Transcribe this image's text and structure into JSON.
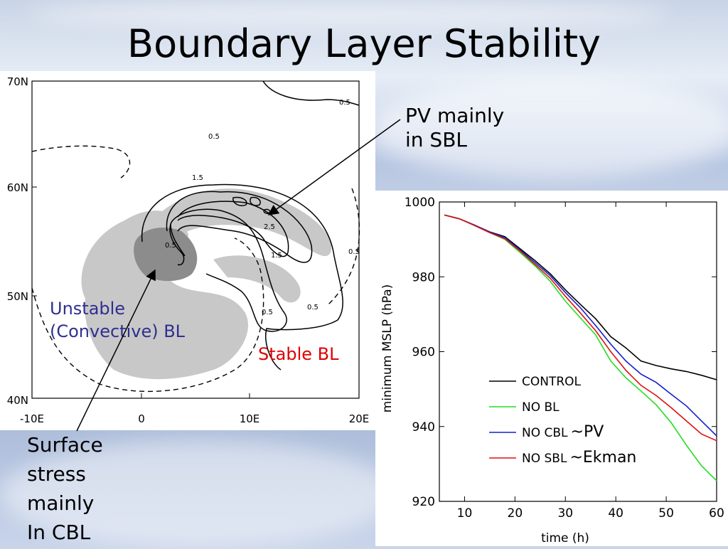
{
  "slide": {
    "title": "Boundary Layer Stability"
  },
  "callouts": {
    "pv_sbl": [
      "PV mainly",
      "in SBL"
    ],
    "surface_stress": [
      "Surface",
      "stress",
      "mainly",
      "In CBL"
    ]
  },
  "map": {
    "lat_labels": [
      "70N",
      "60N",
      "50N",
      "40N"
    ],
    "lon_labels": [
      "-10E",
      "0",
      "10E",
      "20E"
    ],
    "contour_labels": [
      "0.5",
      "0.5",
      "1.5",
      "2.5",
      "1.5",
      "0.5",
      "0.5",
      "0.5",
      "0.5"
    ],
    "unstable_label": [
      "Unstable",
      "(Convective) BL"
    ],
    "stable_label": "Stable BL",
    "colors": {
      "unstable": "#2f2f8f",
      "stable": "#e00000",
      "light_shade": "#c8c8c8",
      "dark_shade": "#8c8c8c"
    }
  },
  "chart_data": {
    "type": "line",
    "xlabel": "time (h)",
    "ylabel": "minimum MSLP (hPa)",
    "xlim": [
      5,
      60
    ],
    "ylim": [
      920,
      1000
    ],
    "xticks": [
      10,
      20,
      30,
      40,
      50,
      60
    ],
    "yticks": [
      920,
      940,
      960,
      980,
      1000
    ],
    "legend_position": "bottom-left",
    "series": [
      {
        "name": "CONTROL",
        "color": "#000000",
        "x": [
          6,
          9,
          12,
          15,
          18,
          21,
          24,
          27,
          30,
          33,
          36,
          39,
          42,
          45,
          48,
          51,
          54,
          57,
          60
        ],
        "y": [
          996.5,
          995.5,
          993.8,
          992,
          990.7,
          987.5,
          984.3,
          980.8,
          976.5,
          972.6,
          968.8,
          964,
          961,
          957.5,
          956.3,
          955.4,
          954.7,
          953.7,
          952.5
        ]
      },
      {
        "name": "NO BL",
        "color": "#22dd22",
        "x": [
          6,
          9,
          12,
          15,
          18,
          21,
          24,
          27,
          30,
          33,
          36,
          39,
          42,
          45,
          48,
          51,
          54,
          57,
          60
        ],
        "y": [
          996.5,
          995.5,
          993.7,
          991.8,
          990,
          986.5,
          982.9,
          978.8,
          973.5,
          969,
          964.5,
          957.5,
          953,
          949.5,
          945.8,
          941,
          935,
          929.5,
          925.5
        ]
      },
      {
        "name": "NO CBL",
        "color": "#1020cc",
        "x": [
          6,
          9,
          12,
          15,
          18,
          21,
          24,
          27,
          30,
          33,
          36,
          39,
          42,
          45,
          48,
          51,
          54,
          57,
          60
        ],
        "y": [
          996.5,
          995.5,
          993.8,
          991.9,
          990.5,
          987.2,
          983.8,
          980.3,
          975.8,
          971.7,
          967,
          962,
          957.5,
          954,
          951.8,
          948.6,
          945.5,
          941.5,
          937.5
        ]
      },
      {
        "name": "NO SBL",
        "color": "#e01010",
        "x": [
          6,
          9,
          12,
          15,
          18,
          21,
          24,
          27,
          30,
          33,
          36,
          39,
          42,
          45,
          48,
          51,
          54,
          57,
          60
        ],
        "y": [
          996.5,
          995.5,
          993.7,
          991.8,
          990.2,
          986.9,
          983.3,
          979.6,
          974.8,
          970.3,
          965.6,
          960,
          955,
          951,
          948.3,
          945,
          941.5,
          938,
          936.2
        ]
      }
    ],
    "annotations": [
      {
        "series": "NO CBL",
        "text": "~PV"
      },
      {
        "series": "NO SBL",
        "text": "~Ekman"
      }
    ]
  }
}
